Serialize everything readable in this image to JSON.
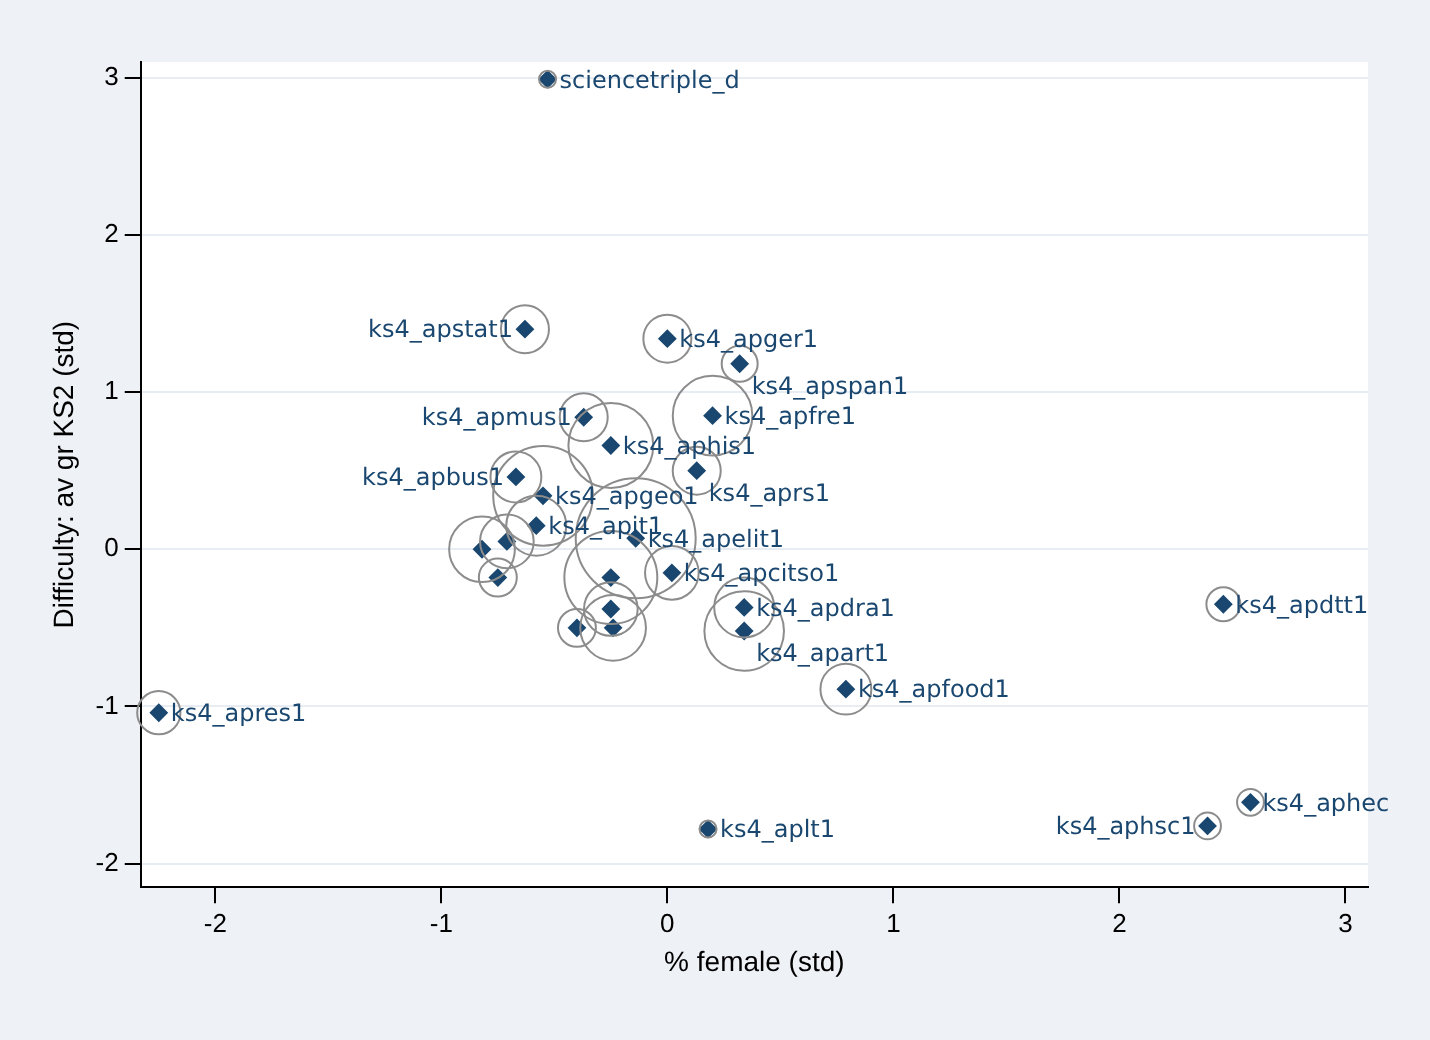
{
  "chart_data": {
    "type": "scatter",
    "xlabel": "% female (std)",
    "ylabel": "Difficulty: av gr KS2 (std)",
    "x": [
      -0.53,
      -0.63,
      0.0,
      0.32,
      -0.37,
      0.2,
      -0.25,
      0.13,
      -0.67,
      -0.55,
      -0.58,
      -0.14,
      -0.82,
      -0.71,
      -0.75,
      -0.25,
      0.02,
      0.34,
      0.34,
      -0.25,
      -0.4,
      -0.24,
      0.79,
      -2.25,
      2.46,
      2.58,
      2.39,
      0.18
    ],
    "series": [
      {
        "type": "bubble",
        "color": "#8c8c8c",
        "values": [
          2.99,
          1.4,
          1.34,
          1.18,
          0.84,
          0.85,
          0.66,
          0.5,
          0.46,
          0.34,
          0.15,
          0.07,
          0.0,
          0.05,
          -0.18,
          -0.18,
          -0.15,
          -0.37,
          -0.52,
          -0.38,
          -0.5,
          -0.5,
          -0.89,
          -1.04,
          -0.35,
          -1.61,
          -1.76,
          -1.78
        ],
        "sizes": [
          0.02,
          0.16,
          0.16,
          0.09,
          0.16,
          0.44,
          0.5,
          0.16,
          0.18,
          0.69,
          0.25,
          1,
          0.3,
          0.2,
          0.1,
          0.6,
          0.2,
          0.25,
          0.44,
          0.2,
          0.1,
          0.3,
          0.18,
          0.13,
          0.08,
          0.05,
          0.05,
          0.02
        ]
      },
      {
        "type": "scatter",
        "color": "#1a476f",
        "marker": "diamond",
        "values": [
          2.99,
          1.4,
          1.34,
          1.18,
          0.84,
          0.85,
          0.66,
          0.5,
          0.46,
          0.34,
          0.15,
          0.07,
          0.0,
          0.05,
          -0.18,
          -0.18,
          -0.15,
          -0.37,
          -0.52,
          -0.38,
          -0.5,
          -0.5,
          -0.89,
          -1.04,
          -0.35,
          -1.61,
          -1.76,
          -1.78
        ],
        "value_labels": [
          "sciencetriple_d",
          "ks4_apstat1",
          "ks4_apger1",
          "ks4_apspan1",
          "ks4_apmus1",
          "ks4_apfre1",
          "ks4_aphis1",
          "ks4_aprs1",
          "ks4_apbus1",
          "ks4_apgeo1",
          "ks4_apit1",
          "ks4_apelit1",
          null,
          null,
          null,
          null,
          "ks4_apcitso1",
          "ks4_apdra1",
          "ks4_apart1",
          null,
          null,
          null,
          "ks4_apfood1",
          "ks4_apres1",
          "ks4_apdtt1",
          "ks4_aphec",
          "ks4_aphsc1",
          "ks4_aplt1"
        ]
      }
    ],
    "xlim": [
      -2.33,
      3.1
    ],
    "xticks": [
      -2,
      -1,
      0,
      1,
      2,
      3
    ],
    "ylim": [
      -2.15,
      3.1
    ],
    "yticks": [
      -2,
      -1,
      0,
      1,
      2,
      3
    ],
    "grid": "y",
    "legend": false
  }
}
